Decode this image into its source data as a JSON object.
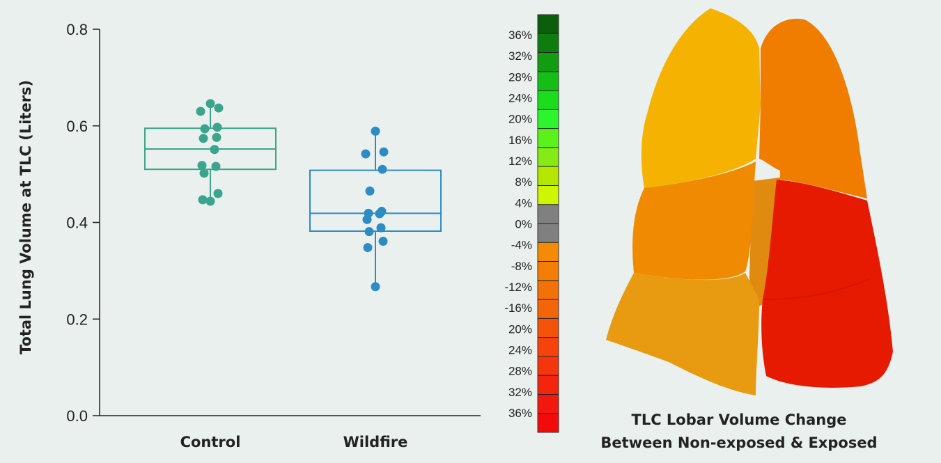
{
  "chart_data": [
    {
      "type": "box",
      "ylabel": "Total Lung Volume at TLC (Liters)",
      "ylim": [
        0,
        0.8
      ],
      "yticks": [
        "0.0",
        "0.2",
        "0.4",
        "0.6",
        "0.8"
      ],
      "yticks_values": [
        0.0,
        0.2,
        0.4,
        0.6,
        0.8
      ],
      "categories": [
        "Control",
        "Wildfire"
      ],
      "colors": {
        "Control": "#3aa58c",
        "Wildfire": "#2e8cc4"
      },
      "boxes": [
        {
          "category": "Control",
          "q1": 0.51,
          "median": 0.552,
          "q3": 0.595,
          "whisker_low": 0.444,
          "whisker_high": 0.646,
          "points": [
            0.646,
            0.637,
            0.63,
            0.597,
            0.594,
            0.576,
            0.574,
            0.551,
            0.518,
            0.516,
            0.502,
            0.46,
            0.447,
            0.444
          ]
        },
        {
          "category": "Wildfire",
          "q1": 0.382,
          "median": 0.419,
          "q3": 0.508,
          "whisker_low": 0.267,
          "whisker_high": 0.589,
          "points": [
            0.589,
            0.546,
            0.542,
            0.51,
            0.465,
            0.423,
            0.419,
            0.418,
            0.406,
            0.389,
            0.381,
            0.361,
            0.348,
            0.267
          ]
        }
      ]
    },
    {
      "type": "colorbar",
      "labels": [
        "36%",
        "32%",
        "28%",
        "24%",
        "20%",
        "16%",
        "12%",
        "8%",
        "4%",
        "0%",
        "-4%",
        "-8%",
        "-12%",
        "-16%",
        "20%",
        "24%",
        "28%",
        "32%",
        "36%"
      ],
      "colors": [
        "#0b5e0b",
        "#0e7d0e",
        "#119c11",
        "#14be14",
        "#1ade1a",
        "#2df52d",
        "#5af21a",
        "#84eb14",
        "#b4e600",
        "#cff500",
        "#808080",
        "#808080",
        "#f48a05",
        "#f47d06",
        "#f47107",
        "#f46409",
        "#f5520a",
        "#f5430b",
        "#f5350c",
        "#f5250d",
        "#f3170d",
        "#f30a0a"
      ],
      "caption_line1": "TLC Lobar Volume Change",
      "caption_line2": "Between Non-exposed & Exposed"
    }
  ]
}
